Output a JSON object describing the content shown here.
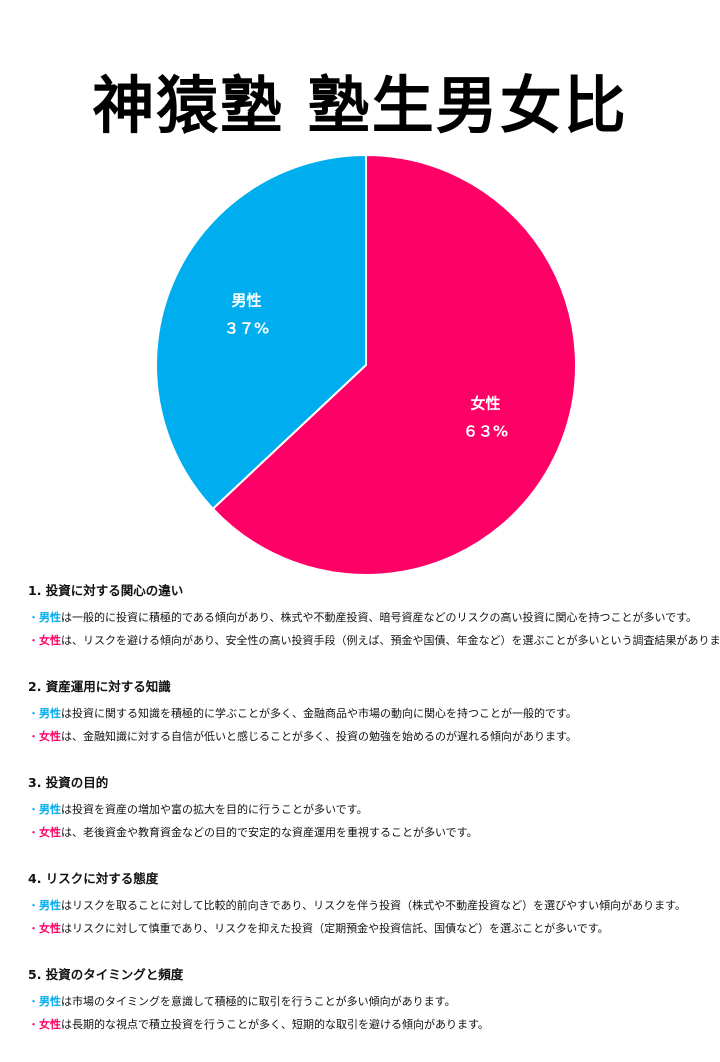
{
  "page_title": "神猿塾 塾生男女比",
  "colors": {
    "male": "#00aeef",
    "female": "#ff0066"
  },
  "chart_data": {
    "type": "pie",
    "title": "神猿塾 塾生男女比",
    "slices": [
      {
        "label": "女性",
        "value": 63,
        "display": "６３%",
        "color": "#ff0066"
      },
      {
        "label": "男性",
        "value": 37,
        "display": "３７%",
        "color": "#00aeef"
      }
    ]
  },
  "sections": [
    {
      "title": "1. 投資に対する関心の違い",
      "male": {
        "tag": "男性",
        "text": "は一般的に投資に積極的である傾向があり、株式や不動産投資、暗号資産などのリスクの高い投資に関心を持つことが多いです。"
      },
      "female": {
        "tag": "女性",
        "text": "は、リスクを避ける傾向があり、安全性の高い投資手段（例えば、預金や国債、年金など）を選ぶことが多いという調査結果があります。"
      }
    },
    {
      "title": "2. 資産運用に対する知識",
      "male": {
        "tag": "男性",
        "text": "は投資に関する知識を積極的に学ぶことが多く、金融商品や市場の動向に関心を持つことが一般的です。"
      },
      "female": {
        "tag": "女性",
        "text": "は、金融知識に対する自信が低いと感じることが多く、投資の勉強を始めるのが遅れる傾向があります。"
      }
    },
    {
      "title": "3. 投資の目的",
      "male": {
        "tag": "男性",
        "text": "は投資を資産の増加や富の拡大を目的に行うことが多いです。"
      },
      "female": {
        "tag": "女性",
        "text": "は、老後資金や教育資金などの目的で安定的な資産運用を重視することが多いです。"
      }
    },
    {
      "title": "4. リスクに対する態度",
      "male": {
        "tag": "男性",
        "text": "はリスクを取ることに対して比較的前向きであり、リスクを伴う投資（株式や不動産投資など）を選びやすい傾向があります。"
      },
      "female": {
        "tag": "女性",
        "text": "はリスクに対して慎重であり、リスクを抑えた投資（定期預金や投資信託、国債など）を選ぶことが多いです。"
      }
    },
    {
      "title": "5. 投資のタイミングと頻度",
      "male": {
        "tag": "男性",
        "text": "は市場のタイミングを意識して積極的に取引を行うことが多い傾向があります。"
      },
      "female": {
        "tag": "女性",
        "text": "は長期的な視点で積立投資を行うことが多く、短期的な取引を避ける傾向があります。"
      }
    }
  ]
}
